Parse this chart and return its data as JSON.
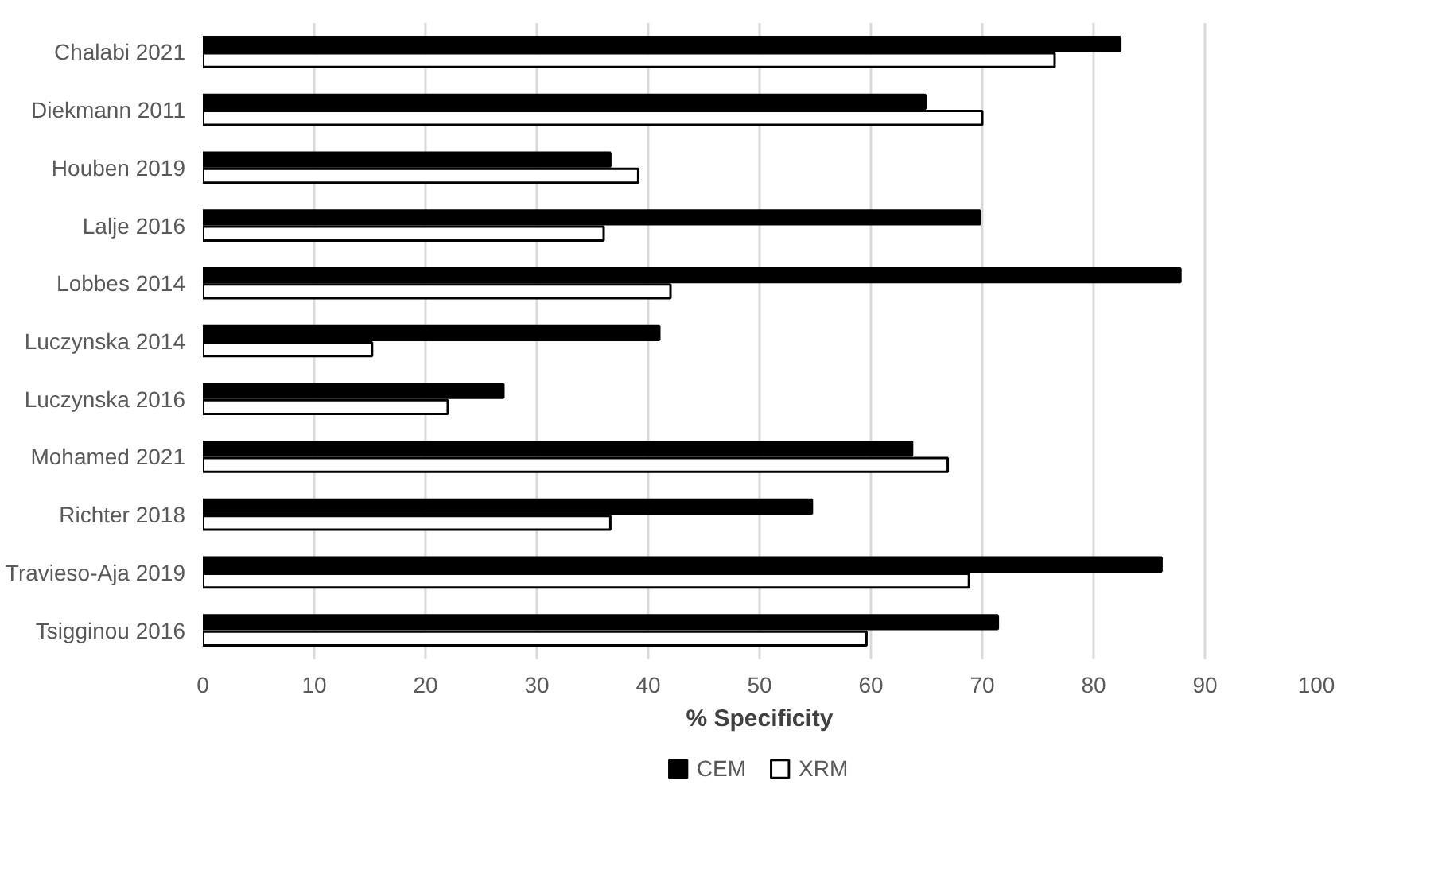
{
  "chart_data": {
    "type": "bar",
    "orientation": "horizontal",
    "xlabel": "% Specificity",
    "categories": [
      "Chalabi 2021",
      "Diekmann 2011",
      "Houben 2019",
      "Lalje 2016",
      "Lobbes 2014",
      "Luczynska 2014",
      "Luczynska 2016",
      "Mohamed 2021",
      "Richter 2018",
      "Travieso-Aja 2019",
      "Tsigginou 2016"
    ],
    "series": [
      {
        "name": "CEM",
        "color": "#000000",
        "values": [
          82.4,
          64.9,
          36.6,
          69.8,
          87.8,
          41.0,
          27.0,
          63.7,
          54.7,
          86.1,
          71.4
        ]
      },
      {
        "name": "XRM",
        "color": "#ffffff",
        "values": [
          76.5,
          70.0,
          39.1,
          36.0,
          42.0,
          15.2,
          22.0,
          66.9,
          36.6,
          68.8,
          59.6
        ]
      }
    ],
    "xlim": [
      0,
      100
    ],
    "xticks": [
      0,
      10,
      20,
      30,
      40,
      50,
      60,
      70,
      80,
      90,
      100
    ],
    "grid": "x",
    "legend": "bottom"
  }
}
